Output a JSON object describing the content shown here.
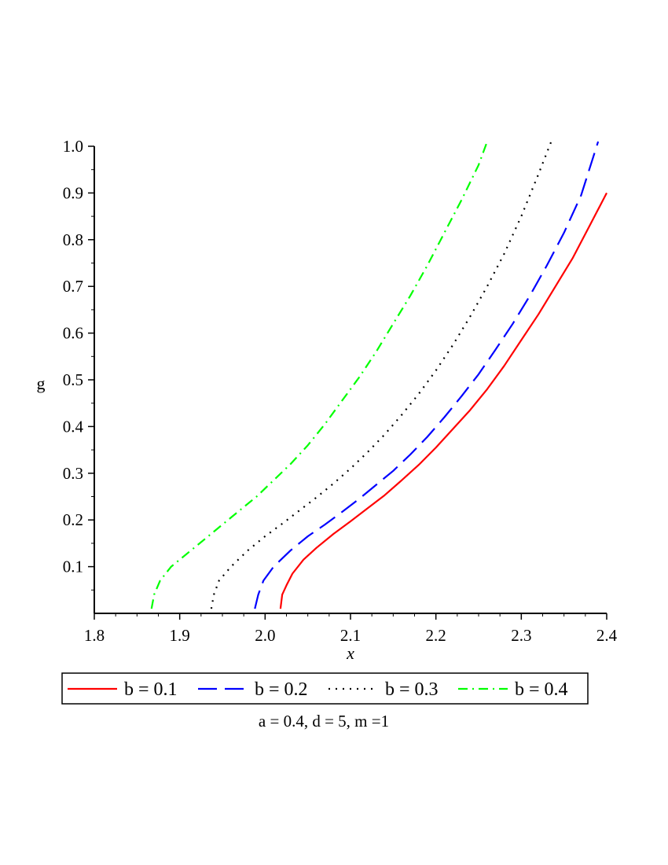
{
  "chart_data": {
    "type": "line",
    "xlabel": "x",
    "ylabel": "g",
    "xlim": [
      1.8,
      2.4
    ],
    "ylim": [
      0.0,
      1.0
    ],
    "xticks": [
      "1.8",
      "1.9",
      "2.0",
      "2.1",
      "2.2",
      "2.3",
      "2.4"
    ],
    "yticks": [
      "0.1",
      "0.2",
      "0.3",
      "0.4",
      "0.5",
      "0.6",
      "0.7",
      "0.8",
      "0.9",
      "1.0"
    ],
    "grid": false,
    "legend_position": "bottom",
    "caption": "a = 0.4, d = 5, m =1",
    "series": [
      {
        "name": "b = 0.1",
        "color": "#ff0000",
        "dash": "solid",
        "x": [
          2.018,
          2.02,
          2.025,
          2.032,
          2.045,
          2.06,
          2.08,
          2.1,
          2.12,
          2.14,
          2.16,
          2.18,
          2.2,
          2.22,
          2.24,
          2.26,
          2.28,
          2.3,
          2.32,
          2.34,
          2.36,
          2.38,
          2.4
        ],
        "y": [
          0.01,
          0.04,
          0.06,
          0.085,
          0.115,
          0.14,
          0.17,
          0.197,
          0.225,
          0.253,
          0.285,
          0.318,
          0.355,
          0.395,
          0.435,
          0.48,
          0.53,
          0.585,
          0.64,
          0.7,
          0.76,
          0.83,
          0.9
        ]
      },
      {
        "name": "b = 0.2",
        "color": "#0000ff",
        "dash": "long-dash",
        "x": [
          1.988,
          1.992,
          1.998,
          2.01,
          2.03,
          2.05,
          2.07,
          2.09,
          2.11,
          2.13,
          2.15,
          2.17,
          2.19,
          2.21,
          2.23,
          2.25,
          2.27,
          2.29,
          2.31,
          2.33,
          2.35,
          2.37,
          2.39
        ],
        "y": [
          0.01,
          0.04,
          0.07,
          0.1,
          0.135,
          0.165,
          0.19,
          0.217,
          0.245,
          0.275,
          0.305,
          0.34,
          0.378,
          0.42,
          0.465,
          0.512,
          0.565,
          0.62,
          0.68,
          0.745,
          0.815,
          0.895,
          1.01
        ]
      },
      {
        "name": "b = 0.3",
        "color": "#000000",
        "dash": "dotted",
        "x": [
          1.937,
          1.94,
          1.946,
          1.96,
          1.98,
          2.0,
          2.02,
          2.04,
          2.06,
          2.08,
          2.1,
          2.12,
          2.14,
          2.16,
          2.18,
          2.2,
          2.22,
          2.24,
          2.26,
          2.28,
          2.3,
          2.32,
          2.335
        ],
        "y": [
          0.01,
          0.04,
          0.07,
          0.1,
          0.135,
          0.165,
          0.192,
          0.22,
          0.248,
          0.278,
          0.31,
          0.345,
          0.383,
          0.425,
          0.47,
          0.52,
          0.575,
          0.635,
          0.7,
          0.77,
          0.85,
          0.94,
          1.01
        ]
      },
      {
        "name": "b = 0.4",
        "color": "#00ff00",
        "dash": "dash-dot",
        "x": [
          1.867,
          1.87,
          1.877,
          1.89,
          1.91,
          1.93,
          1.95,
          1.97,
          1.99,
          2.01,
          2.03,
          2.05,
          2.07,
          2.09,
          2.11,
          2.13,
          2.15,
          2.17,
          2.19,
          2.21,
          2.23,
          2.25,
          2.26
        ],
        "y": [
          0.01,
          0.04,
          0.07,
          0.1,
          0.13,
          0.16,
          0.19,
          0.22,
          0.25,
          0.285,
          0.32,
          0.36,
          0.405,
          0.455,
          0.505,
          0.56,
          0.62,
          0.68,
          0.745,
          0.815,
          0.885,
          0.96,
          1.01
        ]
      }
    ]
  }
}
